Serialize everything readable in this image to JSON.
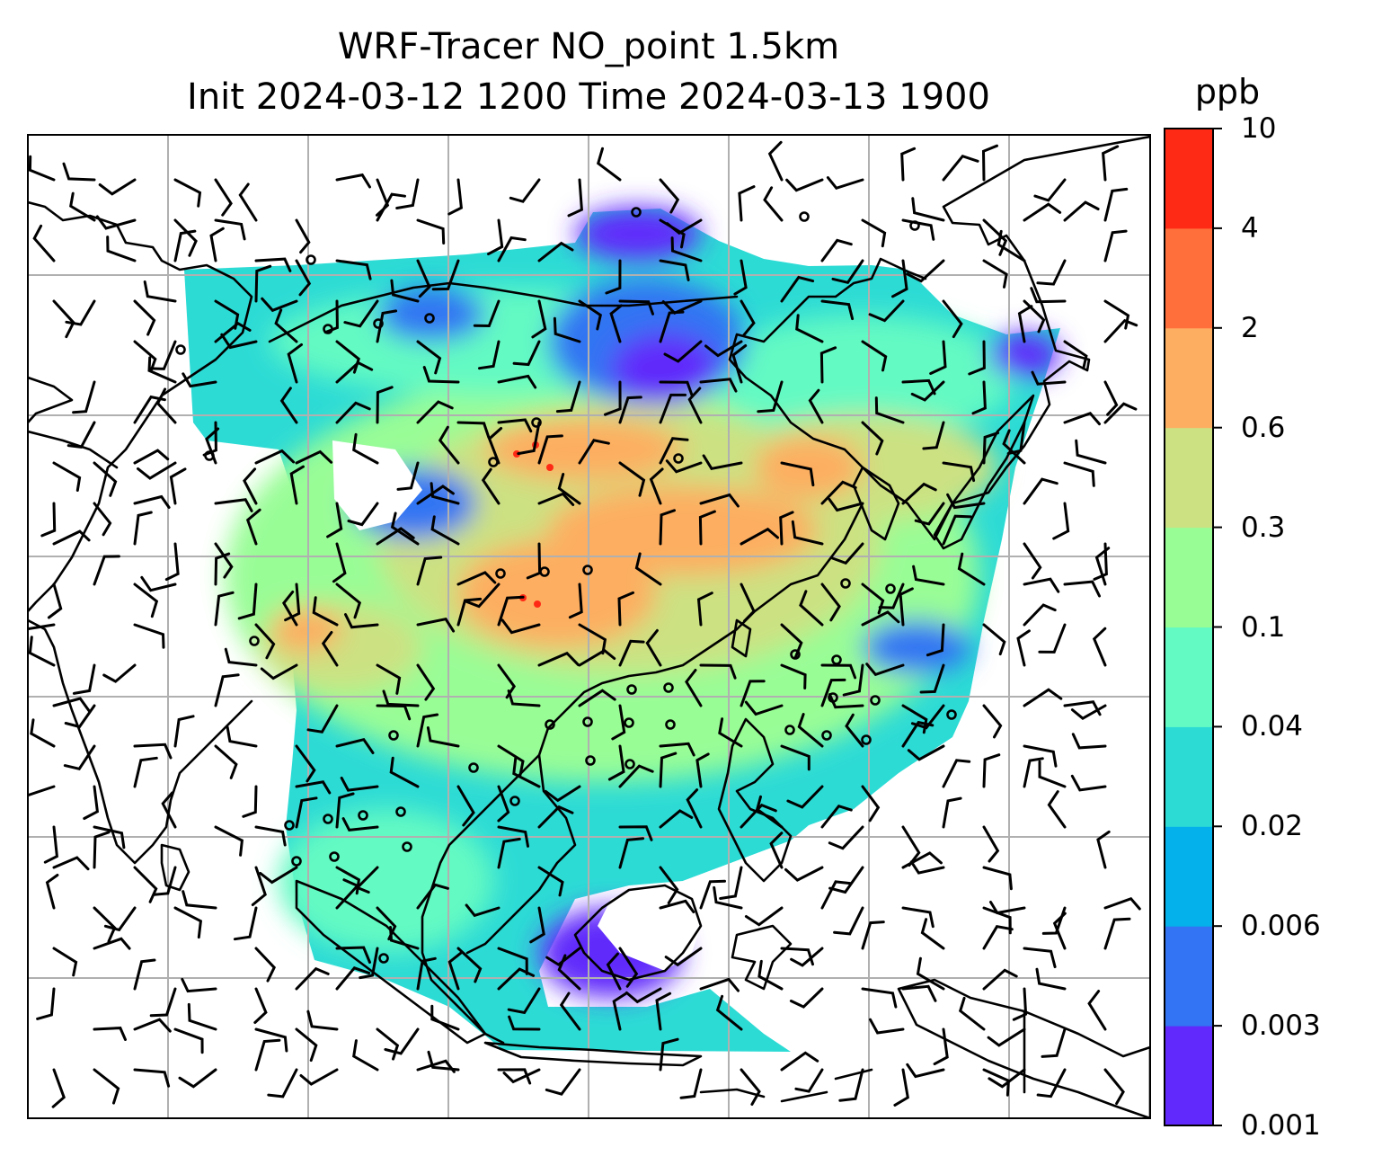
{
  "title": {
    "line1": "WRF-Tracer NO_point 1.5km",
    "line2": "Init 2024-03-12 1200 Time 2024-03-13 1900"
  },
  "colorbar": {
    "unit": "ppb",
    "levels": [
      "0.001",
      "0.003",
      "0.006",
      "0.02",
      "0.04",
      "0.1",
      "0.3",
      "0.6",
      "2",
      "4",
      "10"
    ],
    "colors": [
      "#6129fb",
      "#3274f3",
      "#04b1ea",
      "#2ddbd5",
      "#64fac3",
      "#99fd96",
      "#cce182",
      "#fdae61",
      "#ff6f3c",
      "#ff2a16"
    ]
  },
  "map": {
    "field_colors": {
      "lowest": "#6129fb",
      "very_low": "#3274f3",
      "low": "#2ddbd5",
      "low_mid": "#64fac3",
      "mid": "#99fd96",
      "mid_high": "#cce182",
      "high": "#fdae61",
      "peak": "#ff2a16"
    },
    "gridlines": true,
    "coastline_color": "#000000",
    "wind_barbs": true,
    "calm_markers": true
  }
}
